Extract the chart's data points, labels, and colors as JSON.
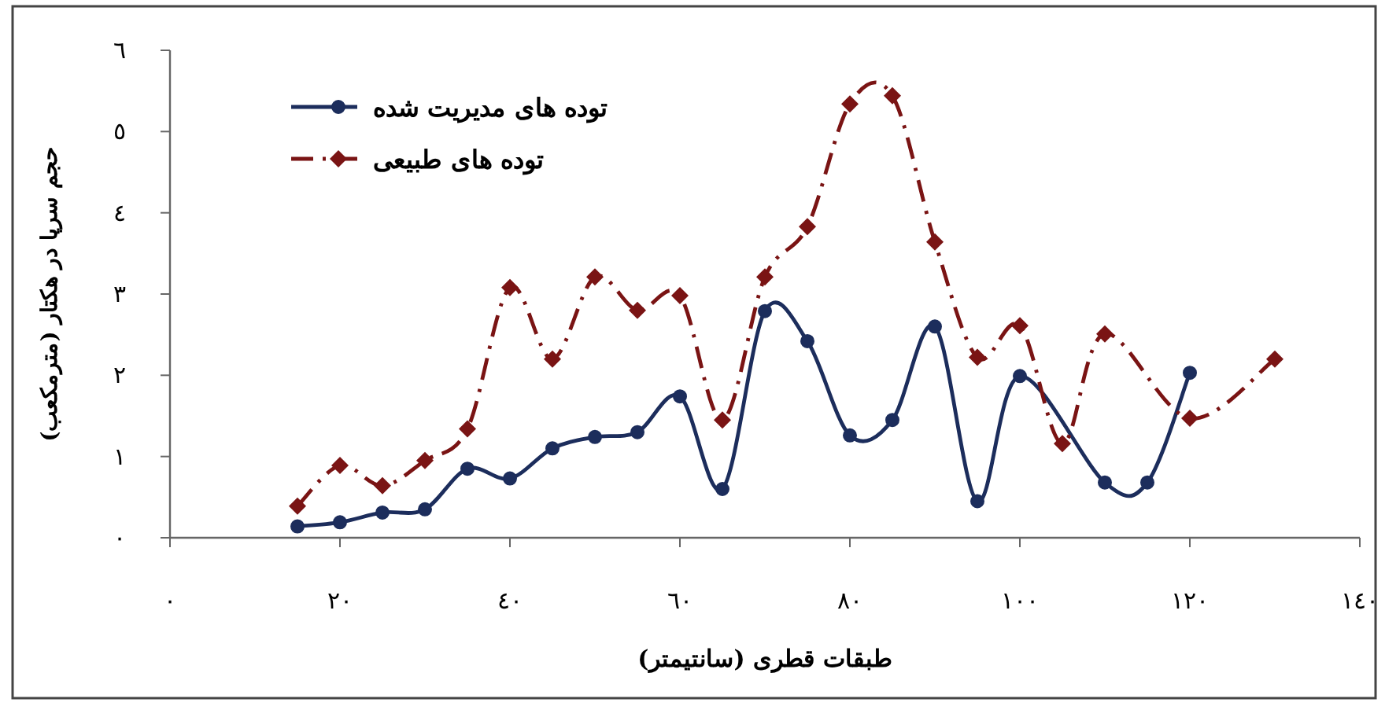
{
  "chart_data": {
    "type": "line",
    "xlabel": "طبقات قطری (سانتیمتر)",
    "ylabel": "حجم سرپا در هکتار (مترمکعب)",
    "xlim": [
      0,
      140
    ],
    "ylim": [
      0,
      6
    ],
    "xticks": [
      {
        "value": 0,
        "label": "٠"
      },
      {
        "value": 20,
        "label": "٢٠"
      },
      {
        "value": 40,
        "label": "٤٠"
      },
      {
        "value": 60,
        "label": "٦٠"
      },
      {
        "value": 80,
        "label": "٨٠"
      },
      {
        "value": 100,
        "label": "١٠٠"
      },
      {
        "value": 120,
        "label": "١٢٠"
      },
      {
        "value": 140,
        "label": "١٤٠"
      }
    ],
    "yticks": [
      {
        "value": 0,
        "label": "٠"
      },
      {
        "value": 1,
        "label": "١"
      },
      {
        "value": 2,
        "label": "٢"
      },
      {
        "value": 3,
        "label": "٣"
      },
      {
        "value": 4,
        "label": "٤"
      },
      {
        "value": 5,
        "label": "٥"
      },
      {
        "value": 6,
        "label": "٦"
      }
    ],
    "grid": false,
    "legend": "top left",
    "series": [
      {
        "name": "توده های مدیریت شده",
        "color": "#1c2d5c",
        "marker": "circle",
        "line_style": "solid",
        "x": [
          15,
          20,
          25,
          30,
          35,
          40,
          45,
          50,
          55,
          60,
          65,
          70,
          75,
          80,
          85,
          90,
          95,
          100,
          110,
          115,
          120
        ],
        "values": [
          0.14,
          0.19,
          0.31,
          0.35,
          0.85,
          0.73,
          1.1,
          1.24,
          1.3,
          1.74,
          0.6,
          2.79,
          2.42,
          1.26,
          1.45,
          2.6,
          0.45,
          1.99,
          0.68,
          0.68,
          2.03
        ]
      },
      {
        "name": "توده های طبیعی",
        "color": "#7a1414",
        "marker": "diamond",
        "line_style": "dashdot",
        "x": [
          15,
          20,
          25,
          30,
          35,
          40,
          45,
          50,
          55,
          60,
          65,
          70,
          75,
          80,
          85,
          90,
          95,
          100,
          105,
          110,
          120,
          130
        ],
        "values": [
          0.39,
          0.89,
          0.64,
          0.95,
          1.34,
          3.08,
          2.2,
          3.21,
          2.8,
          2.98,
          1.45,
          3.21,
          3.83,
          5.34,
          5.44,
          3.64,
          2.22,
          2.61,
          1.16,
          2.51,
          1.47,
          2.2
        ]
      }
    ]
  }
}
